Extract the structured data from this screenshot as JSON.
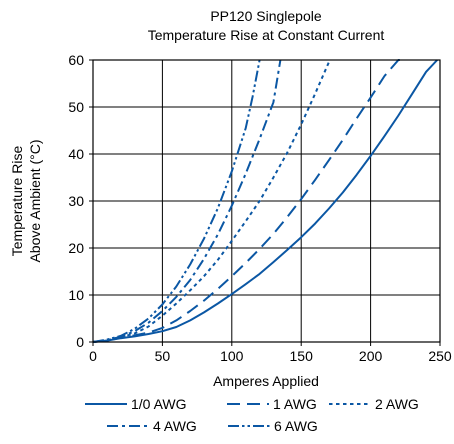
{
  "chart_data": {
    "type": "line",
    "title": "PP120 Singlepole",
    "subtitle": "Temperature Rise at Constant Current",
    "xlabel": "Amperes Applied",
    "ylabel_line1": "Temperature Rise",
    "ylabel_line2": "Above Ambient (°C)",
    "xlim": [
      0,
      250
    ],
    "ylim": [
      0,
      60
    ],
    "xticks": [
      0,
      50,
      100,
      150,
      200,
      250
    ],
    "yticks": [
      0,
      10,
      20,
      30,
      40,
      50,
      60
    ],
    "grid": true,
    "legend_position": "bottom",
    "line_color": "#0b57a4",
    "series": [
      {
        "name": "1/0 AWG",
        "dash": "solid",
        "x": [
          0,
          10,
          20,
          30,
          40,
          50,
          60,
          70,
          80,
          90,
          100,
          110,
          120,
          130,
          140,
          150,
          160,
          170,
          180,
          190,
          200,
          210,
          220,
          230,
          240,
          248
        ],
        "y": [
          0,
          0.3,
          0.8,
          1.2,
          1.7,
          2.3,
          3.2,
          4.6,
          6.3,
          8.2,
          10.2,
          12.3,
          14.5,
          17,
          19.6,
          22.3,
          25.2,
          28.4,
          31.8,
          35.6,
          39.6,
          43.8,
          48.2,
          52.8,
          57.5,
          60
        ]
      },
      {
        "name": "1 AWG",
        "dash": "long",
        "x": [
          0,
          10,
          20,
          30,
          40,
          50,
          60,
          70,
          80,
          90,
          100,
          110,
          120,
          130,
          140,
          150,
          160,
          170,
          180,
          190,
          200,
          210,
          220,
          226
        ],
        "y": [
          0,
          0.3,
          0.9,
          1.4,
          2.0,
          3.0,
          4.6,
          6.6,
          8.8,
          11.3,
          14.0,
          16.8,
          19.8,
          23.0,
          26.6,
          30.4,
          34.5,
          38.7,
          43.0,
          47.6,
          52.0,
          56.6,
          60.0,
          60.0
        ]
      },
      {
        "name": "2 AWG",
        "dash": "dot",
        "x": [
          0,
          10,
          20,
          30,
          40,
          50,
          60,
          70,
          80,
          90,
          100,
          110,
          120,
          130,
          140,
          150,
          160,
          170
        ],
        "y": [
          0,
          0.3,
          1.0,
          1.8,
          3.3,
          5.6,
          8.2,
          11.0,
          14.0,
          17.5,
          21.5,
          25.7,
          30.0,
          35.0,
          40.3,
          46.3,
          52.8,
          59.6
        ]
      },
      {
        "name": "4 AWG",
        "dash": "dashdot",
        "x": [
          0,
          10,
          20,
          30,
          40,
          50,
          60,
          70,
          80,
          90,
          100,
          110,
          120,
          130,
          135
        ],
        "y": [
          0,
          0.4,
          1.1,
          2.3,
          4.1,
          6.6,
          9.6,
          13.2,
          17.7,
          22.9,
          29.0,
          35.8,
          43.2,
          51.0,
          60.0
        ]
      },
      {
        "name": "6 AWG",
        "dash": "dashdotdot",
        "x": [
          0,
          10,
          20,
          30,
          40,
          50,
          60,
          70,
          80,
          90,
          100,
          110,
          115,
          120
        ],
        "y": [
          0,
          0.5,
          1.3,
          2.8,
          5.0,
          8.0,
          11.8,
          16.5,
          22.0,
          28.5,
          36.3,
          45.5,
          52.2,
          60.0
        ]
      }
    ]
  }
}
